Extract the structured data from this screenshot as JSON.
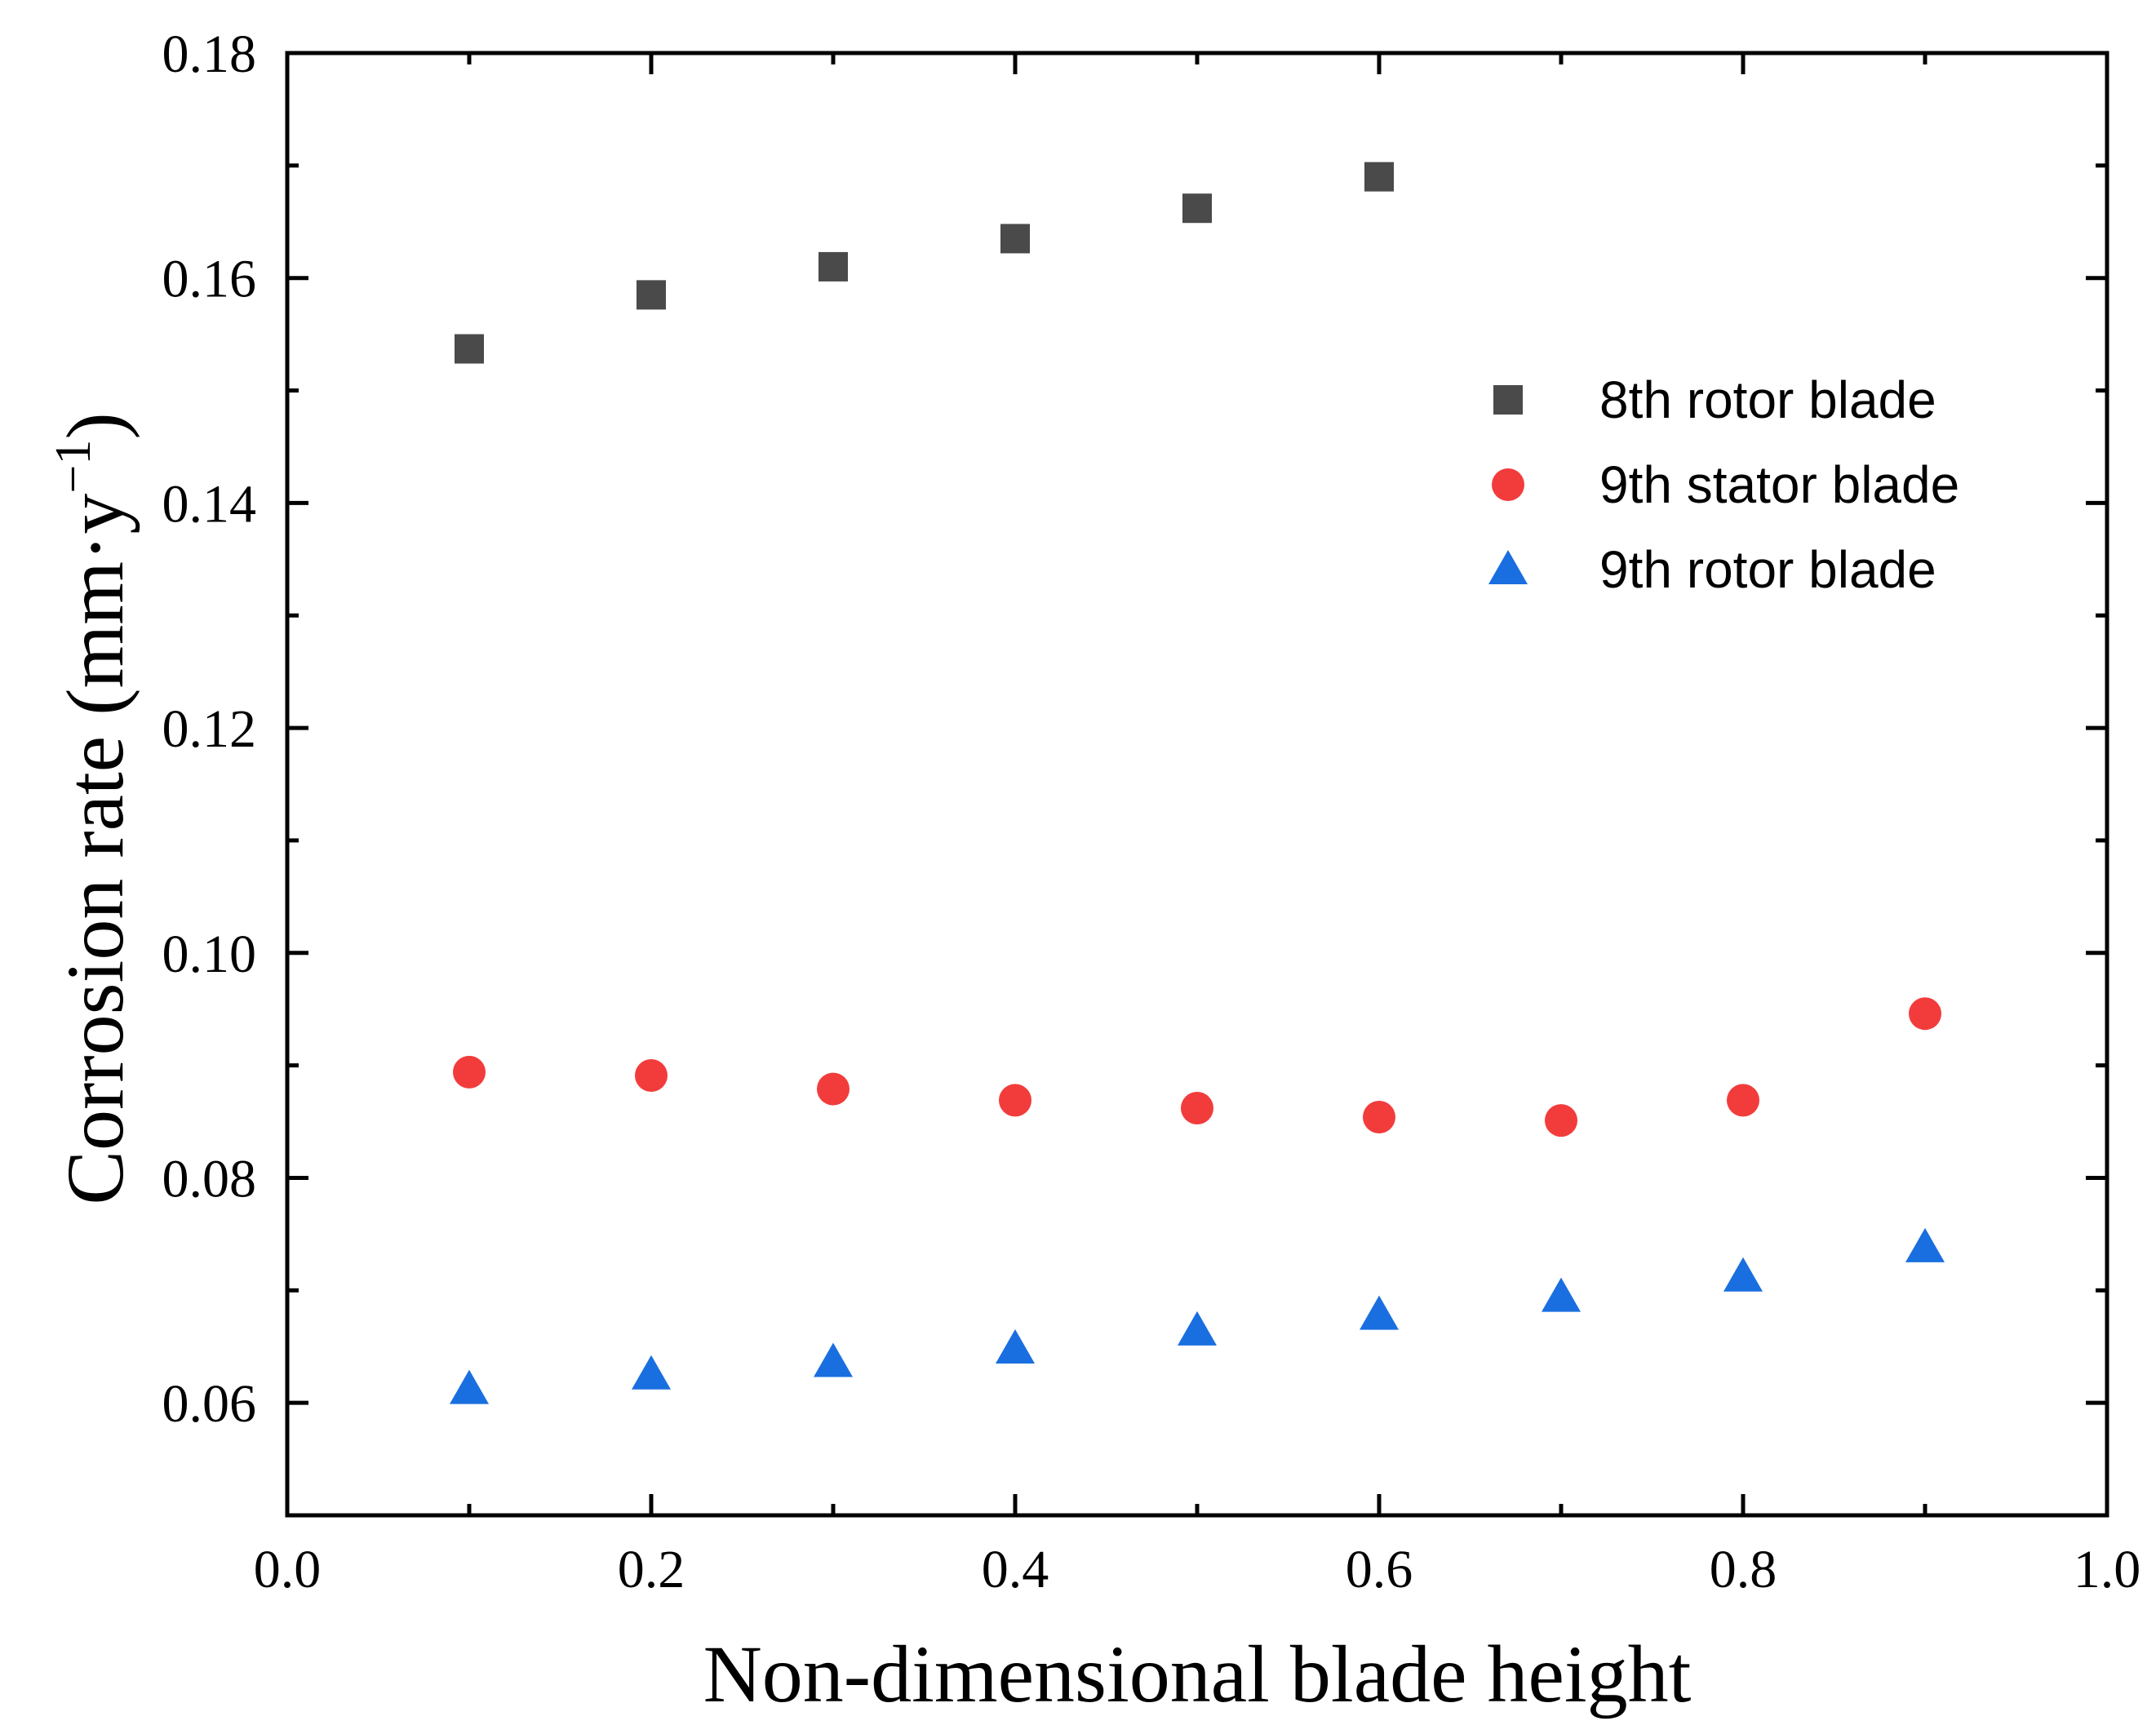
{
  "chart_data": {
    "type": "scatter",
    "title": "",
    "xlabel": "Non-dimensional blade height",
    "ylabel": {
      "main": "Corrosion rate (mm·y",
      "superscript": "−1",
      "close": ")"
    },
    "xlim": [
      0.0,
      1.0
    ],
    "ylim": [
      0.05,
      0.18
    ],
    "x_ticks": [
      0.0,
      0.2,
      0.4,
      0.6,
      0.8,
      1.0
    ],
    "x_tick_labels": [
      "0.0",
      "0.2",
      "0.4",
      "0.6",
      "0.8",
      "1.0"
    ],
    "y_ticks": [
      0.06,
      0.08,
      0.1,
      0.12,
      0.14,
      0.16,
      0.18
    ],
    "y_tick_labels": [
      "0.06",
      "0.08",
      "0.10",
      "0.12",
      "0.14",
      "0.16",
      "0.18"
    ],
    "grid": false,
    "legend_position": "upper-right",
    "series": [
      {
        "name": "8th rotor blade",
        "marker": "square",
        "color": "#4a4a4a",
        "x": [
          0.1,
          0.2,
          0.3,
          0.4,
          0.5,
          0.6
        ],
        "y": [
          0.1537,
          0.1585,
          0.161,
          0.1635,
          0.1662,
          0.169
        ]
      },
      {
        "name": "9th stator blade",
        "marker": "circle",
        "color": "#f23c3c",
        "x": [
          0.1,
          0.2,
          0.3,
          0.4,
          0.5,
          0.6,
          0.7,
          0.8,
          0.9
        ],
        "y": [
          0.0894,
          0.0891,
          0.0879,
          0.0869,
          0.0862,
          0.0854,
          0.0851,
          0.0869,
          0.0946
        ]
      },
      {
        "name": "9th rotor blade",
        "marker": "triangle",
        "color": "#1a6fe0",
        "x": [
          0.1,
          0.2,
          0.3,
          0.4,
          0.5,
          0.6,
          0.7,
          0.8,
          0.9
        ],
        "y": [
          0.0612,
          0.0625,
          0.0636,
          0.0648,
          0.0664,
          0.0678,
          0.0694,
          0.0712,
          0.0738
        ]
      }
    ]
  }
}
